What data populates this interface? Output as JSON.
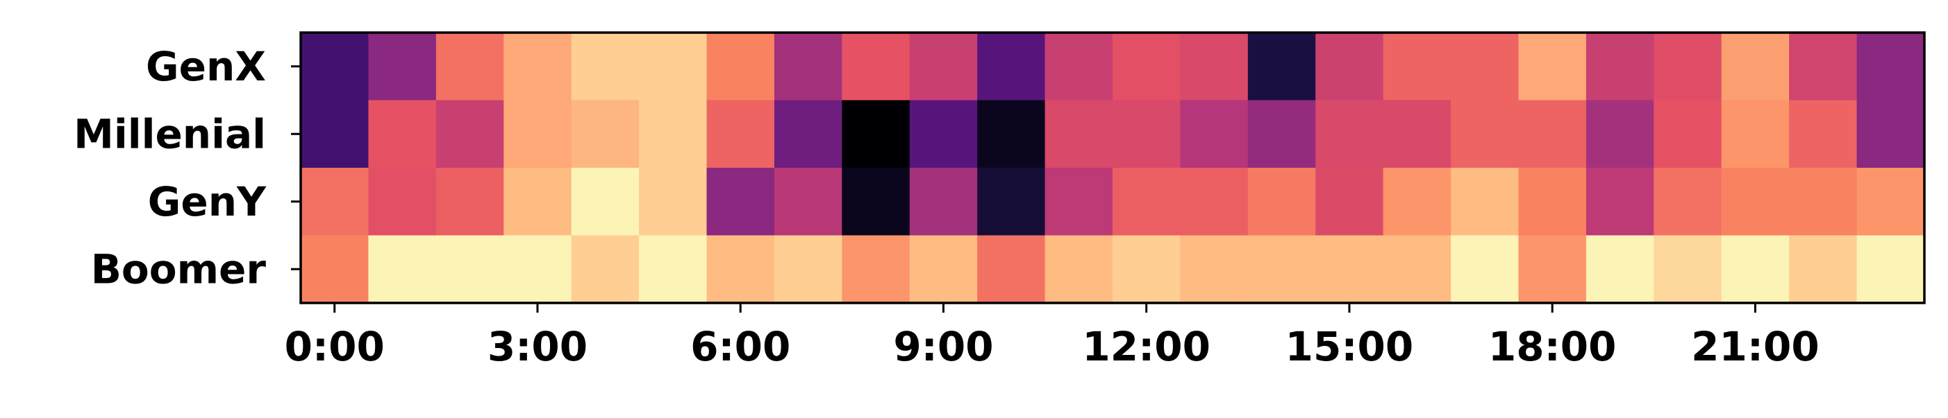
{
  "chart_data": {
    "type": "heatmap",
    "title": "",
    "xlabel": "",
    "ylabel": "",
    "colormap": "magma",
    "colorscale": [
      "#000004",
      "#1c1044",
      "#4f127b",
      "#812581",
      "#b5367a",
      "#e55064",
      "#fb8761",
      "#fec287",
      "#fcfdbf"
    ],
    "rows": [
      "GenX",
      "Millenial",
      "GenY",
      "Boomer"
    ],
    "columns": [
      "0:00",
      "1:00",
      "2:00",
      "3:00",
      "4:00",
      "5:00",
      "6:00",
      "7:00",
      "8:00",
      "9:00",
      "10:00",
      "11:00",
      "12:00",
      "13:00",
      "14:00",
      "15:00",
      "16:00",
      "17:00",
      "18:00",
      "19:00",
      "20:00",
      "21:00",
      "22:00",
      "23:00"
    ],
    "x_tick_labels": [
      "0:00",
      "3:00",
      "6:00",
      "9:00",
      "12:00",
      "15:00",
      "18:00",
      "21:00"
    ],
    "x_tick_positions": [
      0,
      3,
      6,
      9,
      12,
      15,
      18,
      21
    ],
    "values": [
      [
        0.22,
        0.4,
        0.7,
        0.82,
        0.9,
        0.9,
        0.74,
        0.46,
        0.63,
        0.55,
        0.27,
        0.55,
        0.62,
        0.59,
        0.12,
        0.56,
        0.67,
        0.67,
        0.82,
        0.55,
        0.61,
        0.8,
        0.57,
        0.4
      ],
      [
        0.22,
        0.63,
        0.55,
        0.82,
        0.85,
        0.9,
        0.67,
        0.33,
        0.0,
        0.27,
        0.05,
        0.59,
        0.59,
        0.5,
        0.42,
        0.59,
        0.59,
        0.67,
        0.67,
        0.46,
        0.63,
        0.78,
        0.67,
        0.4
      ],
      [
        0.7,
        0.62,
        0.66,
        0.86,
        0.98,
        0.9,
        0.4,
        0.51,
        0.05,
        0.46,
        0.1,
        0.52,
        0.66,
        0.66,
        0.72,
        0.6,
        0.78,
        0.86,
        0.74,
        0.52,
        0.7,
        0.74,
        0.74,
        0.78
      ],
      [
        0.74,
        0.98,
        0.98,
        0.98,
        0.9,
        0.98,
        0.86,
        0.9,
        0.78,
        0.86,
        0.7,
        0.86,
        0.9,
        0.86,
        0.86,
        0.86,
        0.86,
        0.98,
        0.78,
        0.98,
        0.92,
        0.98,
        0.9,
        0.98
      ]
    ]
  }
}
